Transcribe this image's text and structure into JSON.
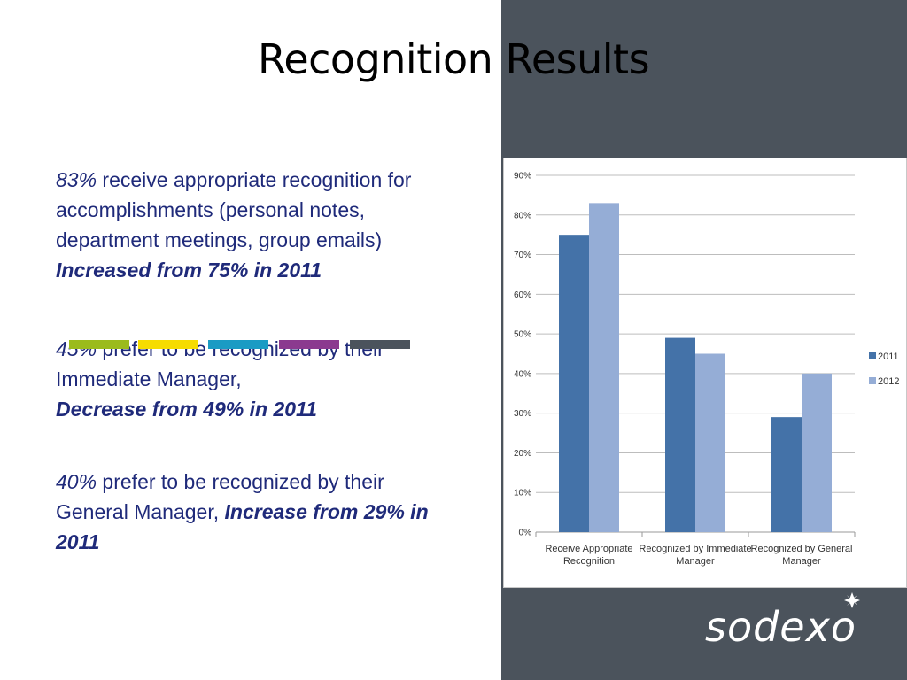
{
  "slide": {
    "title": "Recognition Results"
  },
  "bullets": [
    {
      "stat": "83%",
      "text": " receive appropriate recognition for accomplishments (personal notes, department meetings, group emails)",
      "change": "Increased from 75% in 2011"
    },
    {
      "stat": "45%",
      "text": " prefer to be recognized by their Immediate Manager,",
      "change": "Decrease from 49% in 2011"
    },
    {
      "stat": "40%",
      "text": " prefer to be recognized by their General Manager, ",
      "change": "Increase from 29% in 2011"
    }
  ],
  "stripe_colors": [
    "#9bbb1c",
    "#f6dc00",
    "#1a9bc4",
    "#8b3a8f",
    "#4b535c"
  ],
  "colors": {
    "panel": "#4b535c",
    "text": "#1f2a7a",
    "series_2011": "#4472a8",
    "series_2012": "#95add6"
  },
  "logo": {
    "text": "sodexo",
    "icon": "star-icon"
  },
  "chart_data": {
    "type": "bar",
    "categories": [
      [
        "Receive Appropriate",
        "Recognition"
      ],
      [
        "Recognized by Immediate",
        "Manager"
      ],
      [
        "Recognized by General",
        "Manager"
      ]
    ],
    "series": [
      {
        "name": "2011",
        "values": [
          75,
          49,
          29
        ],
        "color": "#4472a8"
      },
      {
        "name": "2012",
        "values": [
          83,
          45,
          40
        ],
        "color": "#95add6"
      }
    ],
    "ylim": [
      0,
      90
    ],
    "yticks": [
      0,
      10,
      20,
      30,
      40,
      50,
      60,
      70,
      80,
      90
    ],
    "ytick_suffix": "%",
    "grid": true,
    "legend": "right"
  }
}
